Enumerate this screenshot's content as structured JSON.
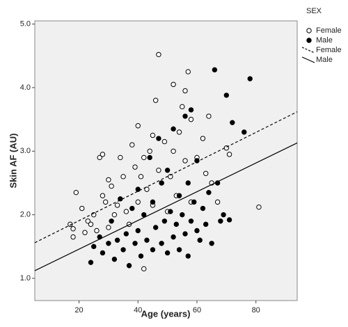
{
  "chart_data": {
    "type": "scatter",
    "x_label": "Age (years)",
    "y_label": "Skin AF (AU)",
    "legend_title": "SEX",
    "legend": "right",
    "xlim": [
      5,
      94
    ],
    "ylim": [
      0.65,
      5.05
    ],
    "xticks": [
      20,
      40,
      60,
      80
    ],
    "yticks": [
      {
        "value": 1,
        "label": "1.0"
      },
      {
        "value": 2,
        "label": "2.0"
      },
      {
        "value": 3,
        "label": "3.0"
      },
      {
        "value": 4,
        "label": "4.0"
      },
      {
        "value": 5,
        "label": "5.0"
      }
    ],
    "series": [
      {
        "name": "Female",
        "type": "scatter",
        "marker": "open",
        "color": "#000000",
        "x": [
          17,
          18,
          18,
          19,
          21,
          22,
          23,
          24,
          25,
          26,
          27,
          28,
          28,
          29,
          30,
          30,
          31,
          32,
          33,
          34,
          35,
          36,
          37,
          38,
          39,
          40,
          40,
          41,
          42,
          42,
          43,
          44,
          45,
          45,
          46,
          47,
          47,
          48,
          49,
          50,
          51,
          52,
          52,
          53,
          54,
          55,
          56,
          56,
          57,
          58,
          58,
          60,
          62,
          63,
          64,
          65,
          67,
          70,
          71,
          81
        ],
        "values": [
          1.85,
          1.78,
          1.65,
          2.35,
          2.1,
          1.72,
          1.9,
          1.85,
          2.0,
          1.75,
          2.9,
          2.95,
          2.3,
          2.2,
          2.55,
          1.8,
          2.45,
          2.0,
          2.15,
          2.9,
          2.6,
          2.05,
          1.85,
          3.1,
          2.75,
          3.4,
          2.2,
          2.6,
          1.15,
          2.9,
          2.4,
          3.0,
          3.25,
          2.15,
          3.8,
          4.52,
          2.7,
          2.5,
          3.15,
          2.05,
          2.6,
          4.05,
          3.0,
          2.3,
          3.3,
          3.7,
          3.95,
          2.85,
          4.25,
          3.5,
          2.2,
          2.9,
          3.2,
          2.65,
          3.55,
          2.5,
          2.2,
          3.05,
          2.95,
          2.12
        ]
      },
      {
        "name": "Male",
        "type": "scatter",
        "marker": "filled",
        "color": "#000000",
        "x": [
          24,
          25,
          27,
          28,
          30,
          31,
          32,
          33,
          34,
          35,
          36,
          37,
          38,
          39,
          40,
          40,
          41,
          42,
          43,
          44,
          45,
          45,
          46,
          47,
          48,
          48,
          49,
          50,
          50,
          51,
          52,
          52,
          53,
          54,
          54,
          55,
          56,
          56,
          57,
          57,
          58,
          58,
          59,
          60,
          60,
          61,
          62,
          63,
          64,
          65,
          66,
          67,
          68,
          69,
          70,
          71,
          72,
          76,
          78
        ],
        "values": [
          1.25,
          1.5,
          1.65,
          1.4,
          1.55,
          1.9,
          1.3,
          1.6,
          2.25,
          1.45,
          1.7,
          1.2,
          2.1,
          1.55,
          1.75,
          2.4,
          1.35,
          2.0,
          1.6,
          2.9,
          1.45,
          2.2,
          1.8,
          3.2,
          1.55,
          2.5,
          1.9,
          1.4,
          2.7,
          2.05,
          1.65,
          3.35,
          1.85,
          2.3,
          1.45,
          2.0,
          3.55,
          1.7,
          2.5,
          1.35,
          3.65,
          1.9,
          2.2,
          1.75,
          2.85,
          1.6,
          2.1,
          1.85,
          2.35,
          1.55,
          4.28,
          2.5,
          1.9,
          2.0,
          3.88,
          1.92,
          3.45,
          3.3,
          4.14
        ]
      },
      {
        "name": "Female",
        "type": "line",
        "dash": "dashed",
        "color": "#000000",
        "x": [
          5,
          94
        ],
        "values": [
          1.56,
          3.62
        ]
      },
      {
        "name": "Male",
        "type": "line",
        "dash": "solid",
        "color": "#000000",
        "x": [
          5,
          94
        ],
        "values": [
          1.12,
          3.13
        ]
      }
    ]
  }
}
